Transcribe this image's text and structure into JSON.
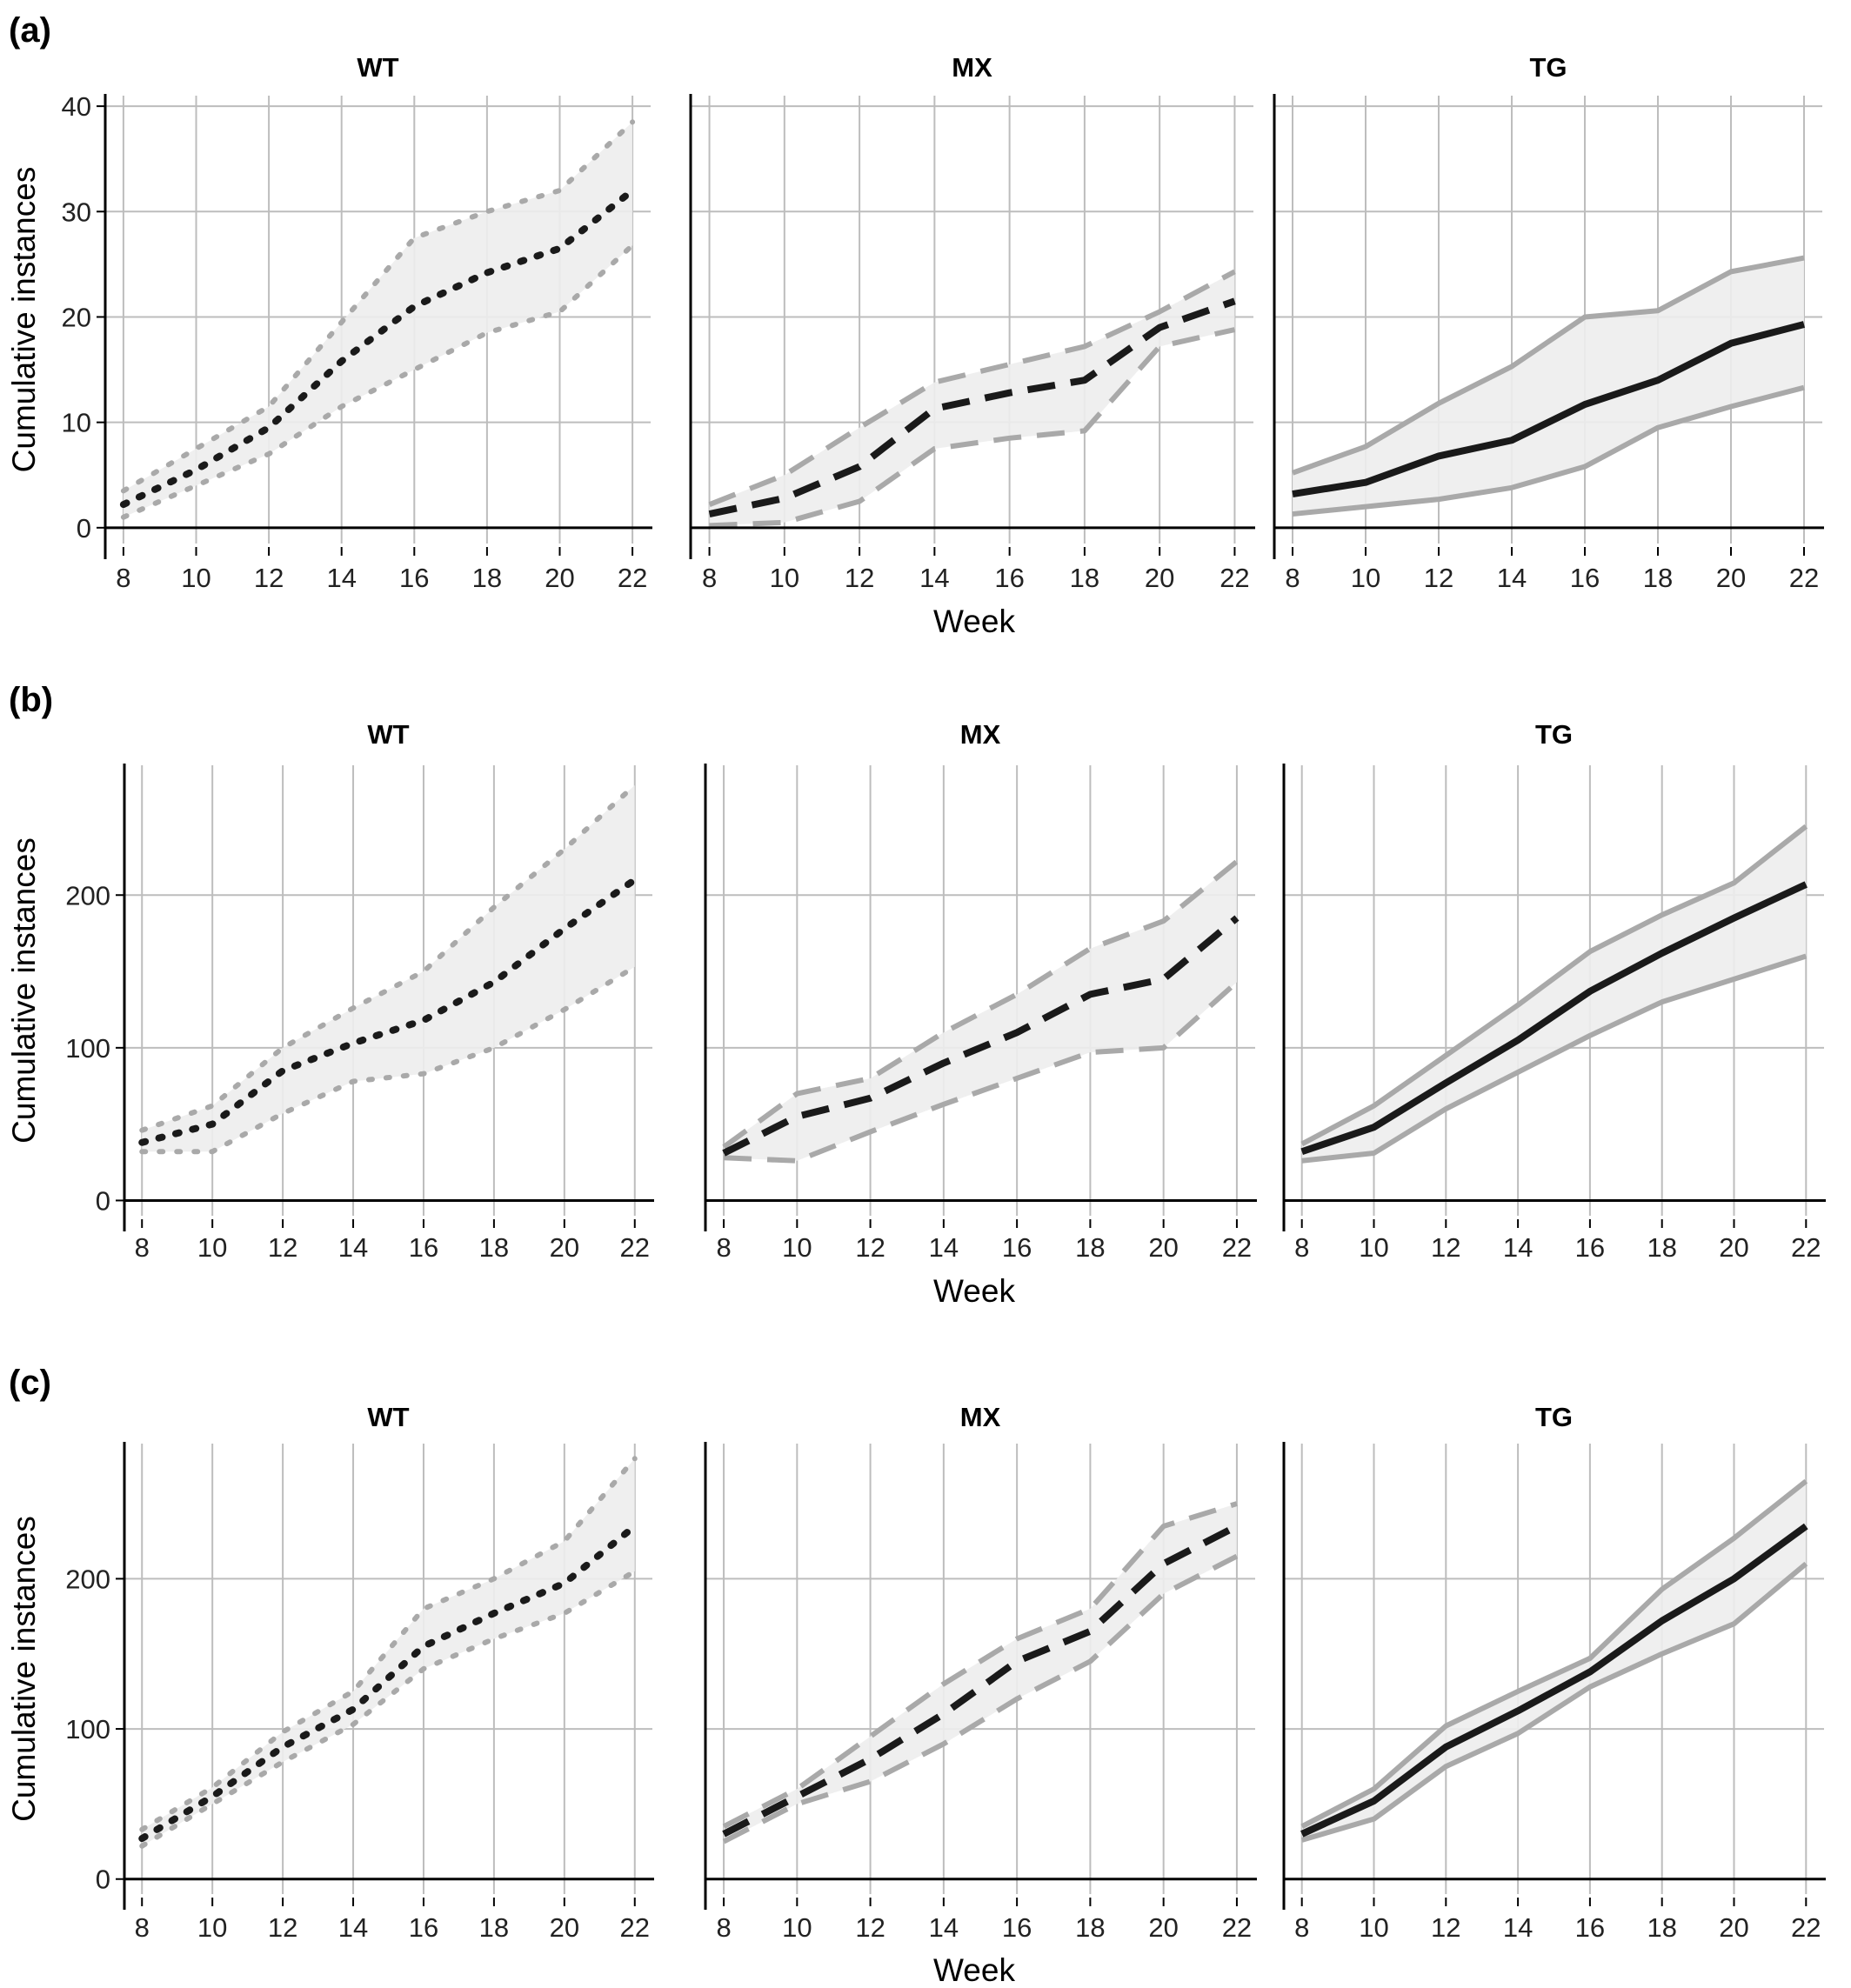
{
  "chart_data": [
    {
      "type": "line",
      "panel_label": "(a)",
      "ylabel": "Cumulative instances",
      "xlabel": "Week",
      "x_ticks": [
        8,
        10,
        12,
        14,
        16,
        18,
        20,
        22
      ],
      "y_ticks": [
        0,
        10,
        20,
        30,
        40
      ],
      "xlim": [
        7.5,
        22.5
      ],
      "ylim": [
        -1.5,
        41
      ],
      "grid": true,
      "facets": [
        {
          "title": "WT",
          "line_style": "dotted",
          "x": [
            8,
            10,
            12,
            14,
            16,
            18,
            20,
            22
          ],
          "mean": [
            2.2,
            5.5,
            9.5,
            15.8,
            21,
            24.2,
            26.5,
            32
          ],
          "lower": [
            1,
            4,
            7,
            11.5,
            15,
            18.5,
            20.5,
            26.8
          ],
          "upper": [
            3.5,
            7.5,
            11.5,
            19.5,
            27.5,
            30,
            32,
            38.5
          ]
        },
        {
          "title": "MX",
          "line_style": "dashed",
          "x": [
            8,
            10,
            12,
            14,
            16,
            18,
            20,
            22
          ],
          "mean": [
            1.3,
            2.8,
            5.8,
            11.3,
            12.8,
            14,
            19,
            21.5
          ],
          "lower": [
            0.2,
            0.5,
            2.5,
            7.5,
            8.5,
            9.2,
            17.2,
            18.8
          ],
          "upper": [
            2.2,
            5,
            9.5,
            13.8,
            15.5,
            17.2,
            20.5,
            24.3
          ]
        },
        {
          "title": "TG",
          "line_style": "solid",
          "x": [
            8,
            10,
            12,
            14,
            16,
            18,
            20,
            22
          ],
          "mean": [
            3.2,
            4.3,
            6.8,
            8.3,
            11.7,
            14,
            17.5,
            19.3
          ],
          "lower": [
            1.3,
            2,
            2.7,
            3.8,
            5.8,
            9.5,
            11.5,
            13.3
          ],
          "upper": [
            5.2,
            7.7,
            11.8,
            15.3,
            20,
            20.6,
            24.3,
            25.6
          ]
        }
      ]
    },
    {
      "type": "line",
      "panel_label": "(b)",
      "ylabel": "Cumulative instances",
      "xlabel": "Week",
      "x_ticks": [
        8,
        10,
        12,
        14,
        16,
        18,
        20,
        22
      ],
      "y_ticks": [
        0,
        100,
        200
      ],
      "xlim": [
        7.5,
        22.5
      ],
      "ylim": [
        -10,
        285
      ],
      "grid": true,
      "facets": [
        {
          "title": "WT",
          "line_style": "dotted",
          "x": [
            8,
            10,
            12,
            14,
            16,
            18,
            20,
            22
          ],
          "mean": [
            38,
            50,
            85,
            103,
            118,
            143,
            178,
            210
          ],
          "lower": [
            32,
            32,
            57,
            78,
            83,
            100,
            125,
            153
          ],
          "upper": [
            46,
            62,
            100,
            126,
            150,
            192,
            230,
            272
          ]
        },
        {
          "title": "MX",
          "line_style": "dashed",
          "x": [
            8,
            10,
            12,
            14,
            16,
            18,
            20,
            22
          ],
          "mean": [
            31,
            55,
            67,
            90,
            110,
            135,
            145,
            185
          ],
          "lower": [
            28,
            26,
            45,
            63,
            80,
            97,
            100,
            143
          ],
          "upper": [
            35,
            70,
            80,
            110,
            135,
            165,
            183,
            222
          ]
        },
        {
          "title": "TG",
          "line_style": "solid",
          "x": [
            8,
            10,
            12,
            14,
            16,
            18,
            20,
            22
          ],
          "mean": [
            32,
            48,
            77,
            105,
            137,
            162,
            185,
            207
          ],
          "lower": [
            26,
            31,
            60,
            84,
            108,
            130,
            145,
            160
          ],
          "upper": [
            37,
            62,
            95,
            128,
            163,
            187,
            208,
            245
          ]
        }
      ]
    },
    {
      "type": "line",
      "panel_label": "(c)",
      "ylabel": "Cumulative instances",
      "xlabel": "Week",
      "x_ticks": [
        8,
        10,
        12,
        14,
        16,
        18,
        20,
        22
      ],
      "y_ticks": [
        0,
        100,
        200
      ],
      "xlim": [
        7.5,
        22.5
      ],
      "ylim": [
        -10,
        290
      ],
      "grid": true,
      "facets": [
        {
          "title": "WT",
          "line_style": "dotted",
          "x": [
            8,
            10,
            12,
            14,
            16,
            18,
            20,
            22
          ],
          "mean": [
            27,
            55,
            88,
            113,
            155,
            177,
            197,
            235
          ],
          "lower": [
            22,
            50,
            78,
            103,
            140,
            160,
            177,
            205
          ],
          "upper": [
            33,
            61,
            98,
            125,
            180,
            200,
            225,
            280
          ]
        },
        {
          "title": "MX",
          "line_style": "dashed",
          "x": [
            8,
            10,
            12,
            14,
            16,
            18,
            20,
            22
          ],
          "mean": [
            30,
            55,
            80,
            110,
            145,
            165,
            210,
            235
          ],
          "lower": [
            25,
            50,
            65,
            90,
            120,
            145,
            190,
            215
          ],
          "upper": [
            35,
            60,
            95,
            130,
            160,
            180,
            235,
            250
          ]
        },
        {
          "title": "TG",
          "line_style": "solid",
          "x": [
            8,
            10,
            12,
            14,
            16,
            18,
            20,
            22
          ],
          "mean": [
            30,
            52,
            88,
            112,
            138,
            172,
            200,
            235
          ],
          "lower": [
            26,
            40,
            75,
            97,
            128,
            150,
            170,
            210
          ],
          "upper": [
            35,
            60,
            102,
            125,
            147,
            193,
            227,
            265
          ]
        }
      ]
    }
  ]
}
